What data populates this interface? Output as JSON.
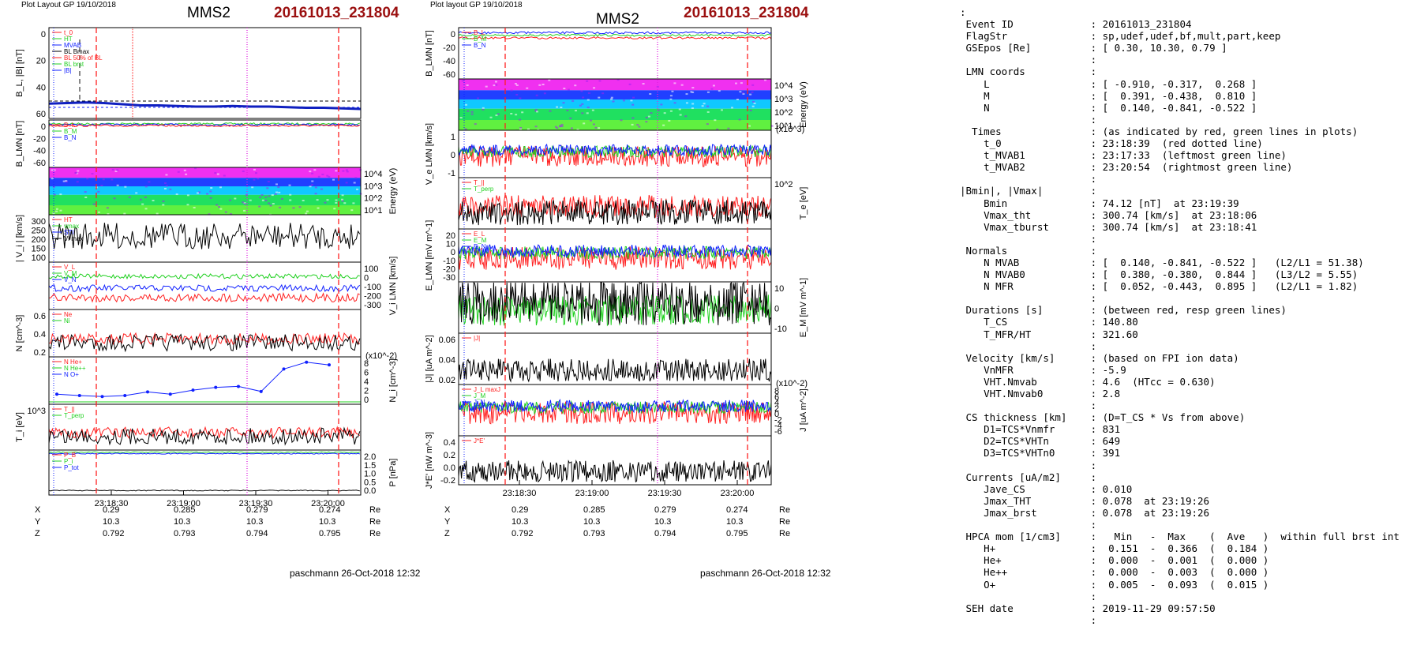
{
  "left_plot": {
    "layout_label": "Plot Layout GP 19/10/2018",
    "spacecraft": "MMS2",
    "event": "20161013_231804",
    "time_ticks": [
      "23:18:30",
      "23:19:00",
      "23:19:30",
      "23:20:00"
    ],
    "coords": {
      "rows": [
        {
          "name": "X",
          "values": [
            "0.29",
            "0.285",
            "0.279",
            "0.274"
          ],
          "unit": "Re"
        },
        {
          "name": "Y",
          "values": [
            "10.3",
            "10.3",
            "10.3",
            "10.3"
          ],
          "unit": "Re"
        },
        {
          "name": "Z",
          "values": [
            "0.792",
            "0.793",
            "0.794",
            "0.795"
          ],
          "unit": "Re"
        }
      ]
    },
    "footer": "paschmann 26-Oct-2018 12:32"
  },
  "right_plot": {
    "layout_label": "Plot layout GP 19/10/2018",
    "spacecraft": "MMS2",
    "event": "20161013_231804",
    "time_ticks": [
      "23:18:30",
      "23:19:00",
      "23:19:30",
      "23:20:00"
    ],
    "coords": {
      "rows": [
        {
          "name": "X",
          "values": [
            "0.29",
            "0.285",
            "0.279",
            "0.274"
          ],
          "unit": "Re"
        },
        {
          "name": "Y",
          "values": [
            "10.3",
            "10.3",
            "10.3",
            "10.3"
          ],
          "unit": "Re"
        },
        {
          "name": "Z",
          "values": [
            "0.792",
            "0.793",
            "0.794",
            "0.795"
          ],
          "unit": "Re"
        }
      ]
    },
    "footer": "paschmann 26-Oct-2018 12:32"
  },
  "chart_data": [
    {
      "type": "line",
      "panel": "left-1",
      "ylabel": "B_L, |B| [nT]",
      "yticks": [
        "0",
        "20",
        "40",
        "60"
      ],
      "legend": [
        "t_0",
        "HT",
        "MVAB",
        "BL Bmax",
        "BL 50% of BL",
        "BL brst",
        "|B|"
      ],
      "series": [
        {
          "name": "BL",
          "values": [
            0.5,
            1,
            1.5,
            1,
            0,
            -1,
            -1,
            -1.5,
            -2,
            -2,
            -1.5,
            -2,
            -2,
            -2.5,
            -3,
            -3,
            -3.5,
            -4
          ]
        }
      ]
    },
    {
      "type": "line",
      "panel": "left-2",
      "ylabel": "B_LMN [nT]",
      "yticks": [
        "0",
        "-20",
        "-40",
        "-60"
      ],
      "legend": [
        "B_L",
        "B_M",
        "B_N"
      ],
      "series": [
        {
          "name": "B_L",
          "values": [
            -2,
            -2,
            -3,
            -2,
            -2,
            -3,
            -2,
            -2,
            -3,
            -3,
            -2,
            -3,
            -2,
            -3,
            -3,
            -4,
            -4,
            -5
          ]
        }
      ]
    },
    {
      "type": "heatmap",
      "panel": "left-3",
      "ylabel": "Energy (eV)",
      "yticks": [
        "10^4",
        "10^3",
        "10^2",
        "10^1"
      ]
    },
    {
      "type": "line",
      "panel": "left-4",
      "ylabel": "| V_i | [km/s]",
      "yticks": [
        "300",
        "250",
        "200",
        "150",
        "100"
      ],
      "legend": [
        "HT",
        "vmax",
        "STI",
        "Vi max"
      ]
    },
    {
      "type": "line",
      "panel": "left-5",
      "ylabel": "V_i LMN [km/s]",
      "yticks": [
        "100",
        "0",
        "-100",
        "-200",
        "-300"
      ],
      "legend": [
        "V_L",
        "V_M",
        "V_N"
      ]
    },
    {
      "type": "line",
      "panel": "left-6",
      "ylabel": "N [cm^-3]",
      "yticks": [
        "0.6",
        "0.4",
        "0.2"
      ],
      "legend": [
        "Ne",
        "Ni"
      ]
    },
    {
      "type": "line",
      "panel": "left-7",
      "ylabel": "N_i [cm^-3]",
      "yticks": [
        "8",
        "6",
        "4",
        "2",
        "0"
      ],
      "scale_label": "(x10^-2)",
      "legend": [
        "N He+",
        "N He++",
        "N O+"
      ],
      "series": [
        {
          "name": "N O+",
          "values": [
            1.5,
            1.2,
            1.0,
            1.2,
            2.0,
            1.5,
            2.4,
            3.0,
            3.2,
            2.1,
            7.0,
            8.5,
            7.9
          ]
        }
      ]
    },
    {
      "type": "line",
      "panel": "left-8",
      "ylabel": "T_i [eV]",
      "yticks": [
        "10^3"
      ],
      "legend": [
        "T_||",
        "T_perp"
      ]
    },
    {
      "type": "line",
      "panel": "left-9",
      "ylabel": "P [nPa]",
      "yticks": [
        "2.0",
        "1.5",
        "1.0",
        "0.5",
        "0.0"
      ],
      "legend": [
        "P_B",
        "P_i",
        "P_tot"
      ]
    },
    {
      "type": "line",
      "panel": "right-1",
      "ylabel": "B_LMN [nT]",
      "yticks": [
        "0",
        "-20",
        "-40",
        "-60"
      ],
      "legend": [
        "B_L",
        "B_M",
        "B_N"
      ]
    },
    {
      "type": "heatmap",
      "panel": "right-2",
      "ylabel": "Energy (eV)",
      "yticks": [
        "10^4",
        "10^3",
        "10^2",
        "10^1"
      ]
    },
    {
      "type": "line",
      "panel": "right-3",
      "ylabel": "V_e LMN [km/s]",
      "yticks": [
        "1",
        "0",
        "-1"
      ],
      "scale_label": "(x10^3)"
    },
    {
      "type": "line",
      "panel": "right-4",
      "ylabel": "T_e [eV]",
      "yticks": [
        "10^2"
      ],
      "legend": [
        "T_||",
        "T_perp"
      ]
    },
    {
      "type": "line",
      "panel": "right-5",
      "ylabel": "E_LMN [mV m^-1]",
      "yticks": [
        "20",
        "10",
        "0",
        "-10",
        "-20",
        "-30"
      ],
      "legend": [
        "E_L",
        "E_M",
        "E_N"
      ]
    },
    {
      "type": "line",
      "panel": "right-6",
      "ylabel": "E_M [mV m^-1]",
      "yticks": [
        "10",
        "0",
        "-10"
      ]
    },
    {
      "type": "line",
      "panel": "right-7",
      "ylabel": "|J| [uA m^-2]",
      "yticks": [
        "0.06",
        "0.04",
        "0.02"
      ],
      "legend": [
        "|J|"
      ]
    },
    {
      "type": "line",
      "panel": "right-8",
      "ylabel": "J [uA m^-2]",
      "yticks": [
        "8",
        "6",
        "4",
        "2",
        "0",
        "-2",
        "-4",
        "-6"
      ],
      "scale_label": "(x10^-2)",
      "legend": [
        "J_L maxJ",
        "J_M",
        "J_N"
      ]
    },
    {
      "type": "line",
      "panel": "right-9",
      "ylabel": "J*E' [nW m^-3]",
      "yticks": [
        "0.4",
        "0.2",
        "0.0",
        "-0.2"
      ],
      "legend": [
        "J*E'"
      ]
    }
  ],
  "colors": {
    "event_red": "#9b1010",
    "marker_red": "#ff2020",
    "marker_magenta": "#e020e0",
    "blue": "#1020ff",
    "green": "#20d020",
    "black": "#000000"
  },
  "info_lines": [
    ":",
    " Event ID             : 20161013_231804",
    " FlagStr              : sp,udef,udef,bf,mult,part,keep",
    " GSEpos [Re]          : [ 0.30, 10.30, 0.79 ]",
    "                      :",
    " LMN coords           :",
    "    L                 : [ -0.910, -0.317,  0.268 ]",
    "    M                 : [  0.391, -0.438,  0.810 ]",
    "    N                 : [  0.140, -0.841, -0.522 ]",
    "                      :",
    "  Times               : (as indicated by red, green lines in plots)",
    "    t_0               : 23:18:39  (red dotted line)",
    "    t_MVAB1           : 23:17:33  (leftmost green line)",
    "    t_MVAB2           : 23:20:54  (rightmost green line)",
    "                      :",
    "|Bmin|, |Vmax|        :",
    "    Bmin              : 74.12 [nT]  at 23:19:39",
    "    Vmax_tht          : 300.74 [km/s]  at 23:18:06",
    "    Vmax_tburst       : 300.74 [km/s]  at 23:18:41",
    "                      :",
    " Normals              :",
    "    N MVAB            : [  0.140, -0.841, -0.522 ]   (L2/L1 = 51.38)",
    "    N MVAB0           : [  0.380, -0.380,  0.844 ]   (L3/L2 = 5.55)",
    "    N MFR             : [  0.052, -0.443,  0.895 ]   (L2/L1 = 1.82)",
    "                      :",
    " Durations [s]        : (between red, resp green lines)",
    "    T_CS              : 140.80",
    "    T_MFR/HT          : 321.60",
    "                      :",
    " Velocity [km/s]      : (based on FPI ion data)",
    "    VnMFR             : -5.9",
    "    VHT.Nmvab         : 4.6  (HTcc = 0.630)",
    "    VHT.Nmvab0        : 2.8",
    "                      :",
    " CS thickness [km]    : (D=T_CS * Vs from above)",
    "    D1=TCS*Vnmfr      : 831",
    "    D2=TCS*VHTn       : 649",
    "    D3=TCS*VHTn0      : 391",
    "                      :",
    " Currents [uA/m2]     :",
    "    Jave_CS           : 0.010",
    "    Jmax_THT          : 0.078  at 23:19:26",
    "    Jmax_brst         : 0.078  at 23:19:26",
    "                      :",
    " HPCA mom [1/cm3]     :   Min   -  Max    (  Ave   )  within full brst int",
    "    H+                :  0.151  -  0.366  (  0.184 )",
    "    He+               :  0.000  -  0.001  (  0.000 )",
    "    He++              :  0.000  -  0.003  (  0.000 )",
    "    O+                :  0.005  -  0.093  (  0.015 )",
    "                      :",
    " SEH date             : 2019-11-29 09:57:50",
    "                      :"
  ]
}
